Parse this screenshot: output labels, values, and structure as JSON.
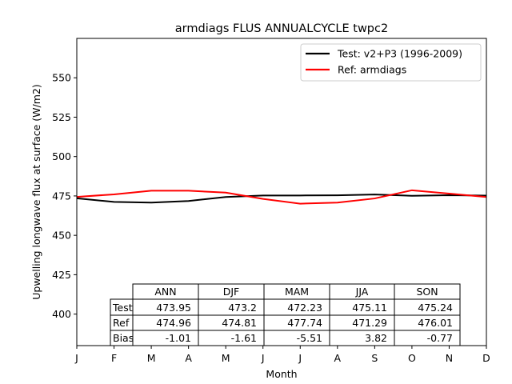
{
  "chart_data": {
    "type": "line",
    "title": "armdiags FLUS ANNUALCYCLE twpc2",
    "xlabel": "Month",
    "ylabel": "Upwelling longwave flux at surface (W/m2)",
    "ylim": [
      380,
      575
    ],
    "yticks": [
      400,
      425,
      450,
      475,
      500,
      525,
      550
    ],
    "x": [
      1,
      2,
      3,
      4,
      5,
      6,
      7,
      8,
      9,
      10,
      11,
      12
    ],
    "xlim": [
      1,
      12
    ],
    "xtick_labels": [
      "J",
      "F",
      "M",
      "A",
      "M",
      "J",
      "J",
      "A",
      "S",
      "O",
      "N",
      "D"
    ],
    "grid": false,
    "legend_position": "top-right",
    "series": [
      {
        "name": "Test: v2+P3 (1996-2009)",
        "color": "#000000",
        "values": [
          473.5,
          471.2,
          470.8,
          471.8,
          474.3,
          475.3,
          475.3,
          475.4,
          475.9,
          475.1,
          475.5,
          475.2
        ]
      },
      {
        "name": "Ref: armdiags",
        "color": "#ff0000",
        "values": [
          474.4,
          476.0,
          478.3,
          478.3,
          477.1,
          473.1,
          470.1,
          470.8,
          473.4,
          478.6,
          476.5,
          474.3
        ]
      }
    ],
    "table": {
      "col_headers": [
        "ANN",
        "DJF",
        "MAM",
        "JJA",
        "SON"
      ],
      "row_headers": [
        "Test",
        "Ref",
        "Bias"
      ],
      "rows": [
        [
          "473.95",
          "473.2",
          "472.23",
          "475.11",
          "475.24"
        ],
        [
          "474.96",
          "474.81",
          "477.74",
          "471.29",
          "476.01"
        ],
        [
          "-1.01",
          "-1.61",
          "-5.51",
          "3.82",
          "-0.77"
        ]
      ]
    }
  }
}
